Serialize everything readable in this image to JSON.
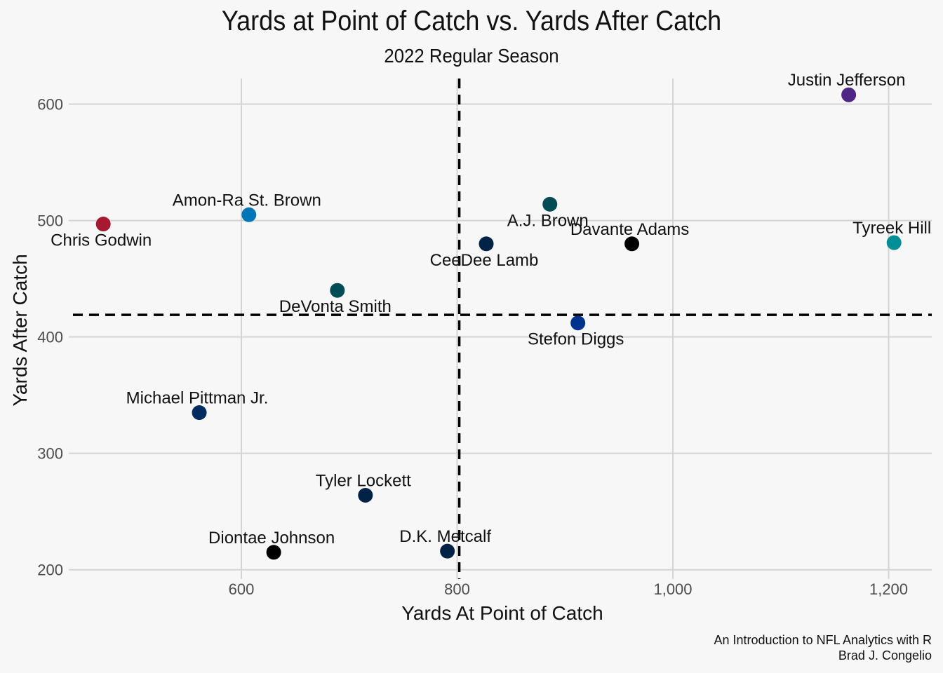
{
  "chart_data": {
    "type": "scatter",
    "title": "Yards at Point of Catch vs. Yards After Catch",
    "subtitle": "2022 Regular Season",
    "xlabel": "Yards At Point of Catch",
    "ylabel": "Yards After Catch",
    "xlim": [
      440,
      1240
    ],
    "ylim": [
      192,
      622
    ],
    "xticks": [
      600,
      800,
      1000,
      1200
    ],
    "xtick_labels": [
      "600",
      "800",
      "1,000",
      "1,200"
    ],
    "yticks": [
      200,
      300,
      400,
      500,
      600
    ],
    "ytick_labels": [
      "200",
      "300",
      "400",
      "500",
      "600"
    ],
    "grid": true,
    "reference_lines": {
      "x_mean": 802,
      "y_mean": 419
    },
    "points": [
      {
        "label": "Justin Jefferson",
        "x": 1163,
        "y": 608,
        "color": "#4F2683",
        "label_pos": "above"
      },
      {
        "label": "Tyreek Hill",
        "x": 1205,
        "y": 481,
        "color": "#008E97",
        "label_pos": "above"
      },
      {
        "label": "Davante Adams",
        "x": 962,
        "y": 480,
        "color": "#000000",
        "label_pos": "above"
      },
      {
        "label": "A.J. Brown",
        "x": 886,
        "y": 514,
        "color": "#004C54",
        "label_pos": "below"
      },
      {
        "label": "CeeDee Lamb",
        "x": 827,
        "y": 480,
        "color": "#002244",
        "label_pos": "below"
      },
      {
        "label": "Stefon Diggs",
        "x": 912,
        "y": 412,
        "color": "#00338D",
        "label_pos": "below"
      },
      {
        "label": "Amon-Ra St. Brown",
        "x": 607,
        "y": 505,
        "color": "#0076B6",
        "label_pos": "above"
      },
      {
        "label": "Chris Godwin",
        "x": 472,
        "y": 497,
        "color": "#A71930",
        "label_pos": "below"
      },
      {
        "label": "DeVonta Smith",
        "x": 689,
        "y": 440,
        "color": "#004C54",
        "label_pos": "below"
      },
      {
        "label": "Michael Pittman Jr.",
        "x": 561,
        "y": 335,
        "color": "#002C5F",
        "label_pos": "above"
      },
      {
        "label": "Tyler Lockett",
        "x": 715,
        "y": 264,
        "color": "#002244",
        "label_pos": "above"
      },
      {
        "label": "Diontae Johnson",
        "x": 630,
        "y": 215,
        "color": "#000000",
        "label_pos": "above"
      },
      {
        "label": "D.K. Metcalf",
        "x": 791,
        "y": 216,
        "color": "#002244",
        "label_pos": "above"
      }
    ]
  },
  "caption": {
    "line1": "An Introduction to NFL Analytics with R",
    "line2": "Brad J. Congelio"
  }
}
